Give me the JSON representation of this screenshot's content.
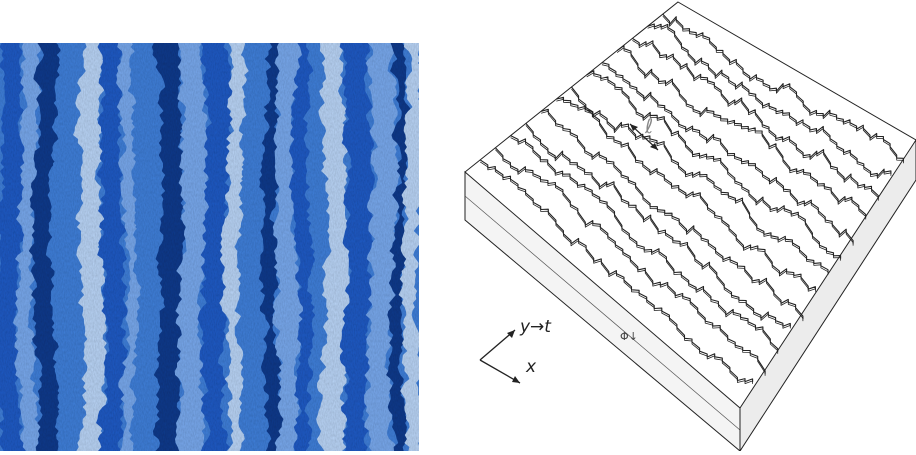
{
  "stm_image": {
    "colors": [
      "#0c3a8c",
      "#1e5ac4",
      "#3f7fd9",
      "#78a8ec",
      "#b9d4f6"
    ]
  },
  "diagram": {
    "step_spacing_label": "ℓ",
    "axis_y_label": "y→t",
    "axis_x_label": "x",
    "small_annotation": "Φ↓",
    "line_color": "#222222"
  }
}
